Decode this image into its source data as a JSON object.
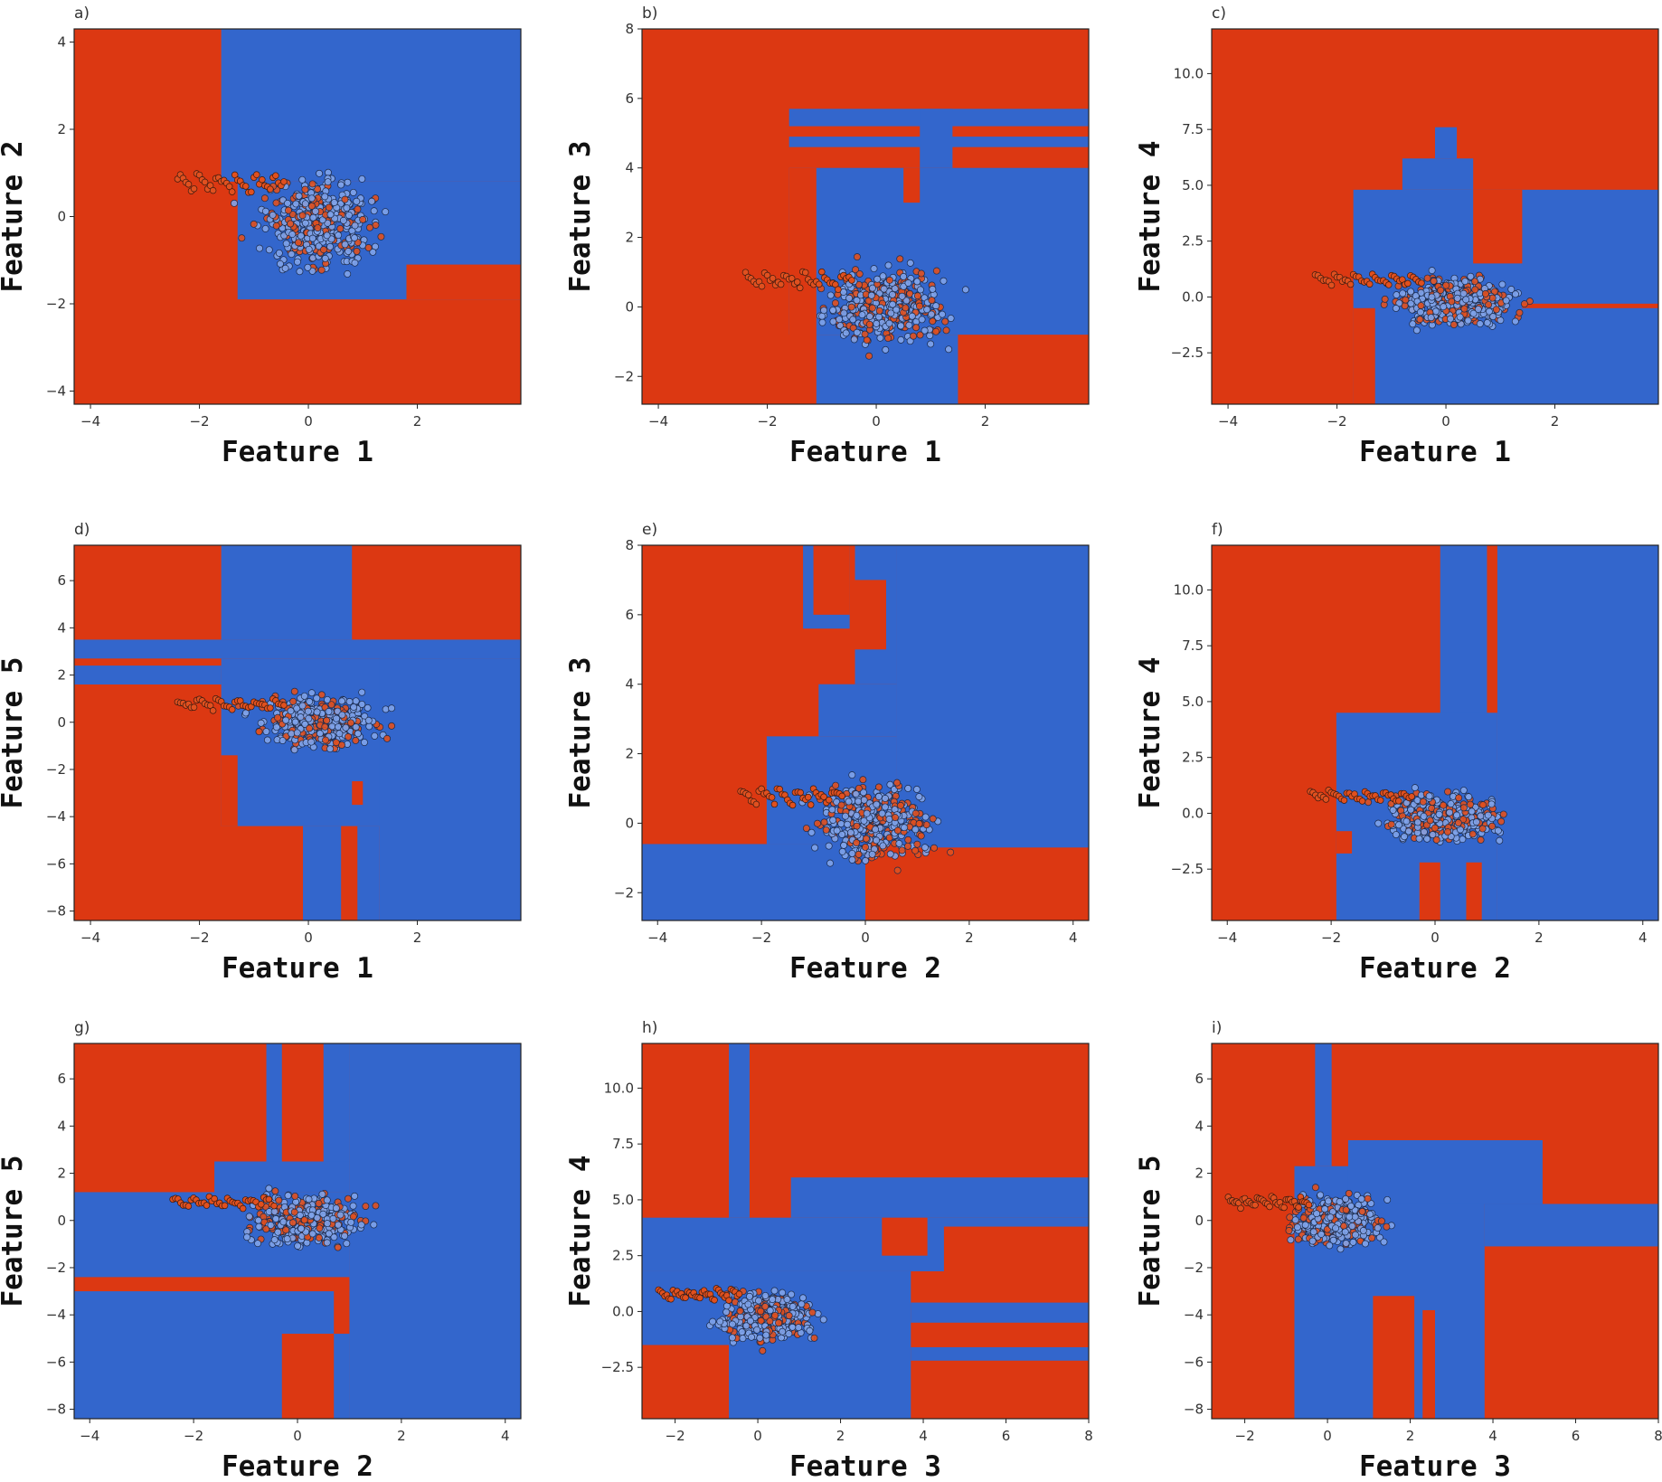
{
  "colors": {
    "class_a": "#dc3812",
    "class_b": "#3366cc",
    "class_a_point": "#e0501f",
    "class_b_point": "#7fa3ea"
  },
  "chart_data": [
    {
      "type": "scatter",
      "letter": "a)",
      "xlabel": "Feature 1",
      "ylabel": "Feature 2",
      "xlim": [
        -4.3,
        3.9
      ],
      "ylim": [
        -4.3,
        4.3
      ],
      "xticks": [
        "-4",
        "-2",
        "0",
        "2"
      ],
      "yticks": [
        "-4",
        "-2",
        "0",
        "2",
        "4"
      ],
      "background": "class_a",
      "regions": [
        {
          "x": [
            -1.6,
            3.9
          ],
          "y": [
            0.8,
            4.3
          ],
          "c": "class_b"
        },
        {
          "x": [
            -1.3,
            3.9
          ],
          "y": [
            -1.9,
            0.8
          ],
          "c": "class_b"
        },
        {
          "x": [
            1.8,
            3.9
          ],
          "y": [
            -1.9,
            -1.1
          ],
          "c": "class_a"
        }
      ]
    },
    {
      "type": "scatter",
      "letter": "b)",
      "xlabel": "Feature 1",
      "ylabel": "Feature 3",
      "xlim": [
        -4.3,
        3.9
      ],
      "ylim": [
        -2.8,
        8.0
      ],
      "xticks": [
        "-4",
        "-2",
        "0",
        "2"
      ],
      "yticks": [
        "-2",
        "0",
        "2",
        "4",
        "6",
        "8"
      ],
      "background": "class_a",
      "regions": [
        {
          "x": [
            -1.6,
            3.9
          ],
          "y": [
            -0.8,
            4.0
          ],
          "c": "class_b"
        },
        {
          "x": [
            -1.2,
            1.5
          ],
          "y": [
            -2.8,
            -0.8
          ],
          "c": "class_b"
        },
        {
          "x": [
            -1.6,
            3.9
          ],
          "y": [
            5.2,
            5.7
          ],
          "c": "class_b"
        },
        {
          "x": [
            -1.6,
            3.9
          ],
          "y": [
            4.6,
            4.9
          ],
          "c": "class_b"
        },
        {
          "x": [
            0.8,
            1.4
          ],
          "y": [
            4.0,
            5.7
          ],
          "c": "class_b"
        },
        {
          "x": [
            -1.6,
            -1.1
          ],
          "y": [
            -2.8,
            4.0
          ],
          "c": "class_a"
        },
        {
          "x": [
            0.5,
            0.8
          ],
          "y": [
            3.0,
            4.0
          ],
          "c": "class_a"
        }
      ]
    },
    {
      "type": "scatter",
      "letter": "c)",
      "xlabel": "Feature 1",
      "ylabel": "Feature 4",
      "xlim": [
        -4.3,
        3.9
      ],
      "ylim": [
        -4.8,
        12.0
      ],
      "xticks": [
        "-4",
        "-2",
        "0",
        "2"
      ],
      "yticks": [
        "-2.5",
        "0.0",
        "2.5",
        "5.0",
        "7.5",
        "10.0"
      ],
      "yticks_values": [
        -2.5,
        0.0,
        2.5,
        5.0,
        7.5,
        10.0
      ],
      "background": "class_a",
      "regions": [
        {
          "x": [
            -1.7,
            3.9
          ],
          "y": [
            -4.8,
            4.8
          ],
          "c": "class_b"
        },
        {
          "x": [
            -0.8,
            0.5
          ],
          "y": [
            4.8,
            6.2
          ],
          "c": "class_b"
        },
        {
          "x": [
            -0.2,
            0.2
          ],
          "y": [
            6.2,
            7.6
          ],
          "c": "class_b"
        },
        {
          "x": [
            0.5,
            1.4
          ],
          "y": [
            1.5,
            4.8
          ],
          "c": "class_a"
        },
        {
          "x": [
            1.4,
            3.9
          ],
          "y": [
            -0.5,
            -0.3
          ],
          "c": "class_a"
        },
        {
          "x": [
            -1.7,
            -1.3
          ],
          "y": [
            -4.8,
            -0.5
          ],
          "c": "class_a"
        }
      ]
    },
    {
      "type": "scatter",
      "letter": "d)",
      "xlabel": "Feature 1",
      "ylabel": "Feature 5",
      "xlim": [
        -4.3,
        3.9
      ],
      "ylim": [
        -8.4,
        7.5
      ],
      "xticks": [
        "-4",
        "-2",
        "0",
        "2"
      ],
      "yticks": [
        "-8",
        "-6",
        "-4",
        "-2",
        "0",
        "2",
        "4",
        "6"
      ],
      "background": "class_a",
      "regions": [
        {
          "x": [
            -1.6,
            0.8
          ],
          "y": [
            3.5,
            7.5
          ],
          "c": "class_b"
        },
        {
          "x": [
            -4.3,
            3.9
          ],
          "y": [
            2.7,
            3.5
          ],
          "c": "class_b"
        },
        {
          "x": [
            -4.3,
            -1.6
          ],
          "y": [
            1.6,
            2.4
          ],
          "c": "class_b"
        },
        {
          "x": [
            -1.6,
            3.9
          ],
          "y": [
            -4.4,
            2.7
          ],
          "c": "class_b"
        },
        {
          "x": [
            1.3,
            3.9
          ],
          "y": [
            -8.4,
            2.7
          ],
          "c": "class_b"
        },
        {
          "x": [
            -0.1,
            0.6
          ],
          "y": [
            -8.4,
            -4.4
          ],
          "c": "class_b"
        },
        {
          "x": [
            0.9,
            1.3
          ],
          "y": [
            -8.4,
            -4.4
          ],
          "c": "class_b"
        },
        {
          "x": [
            -1.6,
            -1.3
          ],
          "y": [
            -4.4,
            -1.4
          ],
          "c": "class_a"
        },
        {
          "x": [
            0.8,
            1.0
          ],
          "y": [
            -3.5,
            -2.5
          ],
          "c": "class_a"
        }
      ]
    },
    {
      "type": "scatter",
      "letter": "e)",
      "xlabel": "Feature 2",
      "ylabel": "Feature 3",
      "xlim": [
        -4.3,
        4.3
      ],
      "ylim": [
        -2.8,
        8.0
      ],
      "xticks": [
        "-4",
        "-2",
        "0",
        "2",
        "4"
      ],
      "yticks": [
        "-2",
        "0",
        "2",
        "4",
        "6",
        "8"
      ],
      "background": "class_a",
      "regions": [
        {
          "x": [
            0.6,
            4.3
          ],
          "y": [
            -0.7,
            8.0
          ],
          "c": "class_b"
        },
        {
          "x": [
            -4.3,
            0.0
          ],
          "y": [
            -2.8,
            -0.6
          ],
          "c": "class_b"
        },
        {
          "x": [
            -1.9,
            0.6
          ],
          "y": [
            -0.6,
            2.5
          ],
          "c": "class_b"
        },
        {
          "x": [
            -0.9,
            0.6
          ],
          "y": [
            2.5,
            4.0
          ],
          "c": "class_b"
        },
        {
          "x": [
            -1.2,
            -0.3
          ],
          "y": [
            5.6,
            8.0
          ],
          "c": "class_b"
        },
        {
          "x": [
            -0.2,
            0.6
          ],
          "y": [
            4.0,
            8.0
          ],
          "c": "class_b"
        },
        {
          "x": [
            -0.3,
            0.4
          ],
          "y": [
            5.0,
            7.0
          ],
          "c": "class_a"
        },
        {
          "x": [
            -1.0,
            -0.3
          ],
          "y": [
            6.0,
            8.0
          ],
          "c": "class_a"
        }
      ]
    },
    {
      "type": "scatter",
      "letter": "f)",
      "xlabel": "Feature 2",
      "ylabel": "Feature 4",
      "xlim": [
        -4.3,
        4.3
      ],
      "ylim": [
        -4.8,
        12.0
      ],
      "xticks": [
        "-4",
        "-2",
        "0",
        "2",
        "4"
      ],
      "yticks": [
        "-2.5",
        "0.0",
        "2.5",
        "5.0",
        "7.5",
        "10.0"
      ],
      "yticks_values": [
        -2.5,
        0.0,
        2.5,
        5.0,
        7.5,
        10.0
      ],
      "background": "class_a",
      "regions": [
        {
          "x": [
            1.2,
            4.3
          ],
          "y": [
            -4.8,
            12.0
          ],
          "c": "class_b"
        },
        {
          "x": [
            0.1,
            1.0
          ],
          "y": [
            -4.8,
            12.0
          ],
          "c": "class_b"
        },
        {
          "x": [
            -1.9,
            1.2
          ],
          "y": [
            -4.8,
            4.5
          ],
          "c": "class_b"
        },
        {
          "x": [
            -0.3,
            0.1
          ],
          "y": [
            -4.8,
            -2.2
          ],
          "c": "class_a"
        },
        {
          "x": [
            0.6,
            0.9
          ],
          "y": [
            -4.8,
            -2.2
          ],
          "c": "class_a"
        },
        {
          "x": [
            -1.9,
            -1.6
          ],
          "y": [
            -1.8,
            -0.8
          ],
          "c": "class_a"
        }
      ]
    },
    {
      "type": "scatter",
      "letter": "g)",
      "xlabel": "Feature 2",
      "ylabel": "Feature 5",
      "xlim": [
        -4.3,
        4.3
      ],
      "ylim": [
        -8.4,
        7.5
      ],
      "xticks": [
        "-4",
        "-2",
        "0",
        "2",
        "4"
      ],
      "yticks": [
        "-8",
        "-6",
        "-4",
        "-2",
        "0",
        "2",
        "4",
        "6"
      ],
      "background": "class_a",
      "regions": [
        {
          "x": [
            1.0,
            4.3
          ],
          "y": [
            -8.4,
            7.5
          ],
          "c": "class_b"
        },
        {
          "x": [
            -4.3,
            1.0
          ],
          "y": [
            -2.4,
            1.2
          ],
          "c": "class_b"
        },
        {
          "x": [
            -4.3,
            1.0
          ],
          "y": [
            -8.4,
            -3.0
          ],
          "c": "class_b"
        },
        {
          "x": [
            -1.6,
            1.0
          ],
          "y": [
            1.2,
            2.5
          ],
          "c": "class_b"
        },
        {
          "x": [
            -0.6,
            -0.3
          ],
          "y": [
            2.5,
            7.5
          ],
          "c": "class_b"
        },
        {
          "x": [
            0.5,
            1.0
          ],
          "y": [
            2.5,
            7.5
          ],
          "c": "class_b"
        },
        {
          "x": [
            -0.3,
            0.7
          ],
          "y": [
            -8.4,
            -4.8
          ],
          "c": "class_a"
        },
        {
          "x": [
            0.7,
            1.0
          ],
          "y": [
            -4.8,
            -2.5
          ],
          "c": "class_a"
        }
      ]
    },
    {
      "type": "scatter",
      "letter": "h)",
      "xlabel": "Feature 3",
      "ylabel": "Feature 4",
      "xlim": [
        -2.8,
        8.0
      ],
      "ylim": [
        -4.8,
        12.0
      ],
      "xticks": [
        "-2",
        "0",
        "2",
        "4",
        "6",
        "8"
      ],
      "yticks": [
        "-2.5",
        "0.0",
        "2.5",
        "5.0",
        "7.5",
        "10.0"
      ],
      "yticks_values": [
        -2.5,
        0.0,
        2.5,
        5.0,
        7.5,
        10.0
      ],
      "background": "class_a",
      "regions": [
        {
          "x": [
            -2.8,
            3.7
          ],
          "y": [
            -4.8,
            1.8
          ],
          "c": "class_b"
        },
        {
          "x": [
            -2.8,
            8.0
          ],
          "y": [
            1.8,
            4.2
          ],
          "c": "class_b"
        },
        {
          "x": [
            0.8,
            8.0
          ],
          "y": [
            4.2,
            6.0
          ],
          "c": "class_b"
        },
        {
          "x": [
            -0.7,
            -0.2
          ],
          "y": [
            4.2,
            12.0
          ],
          "c": "class_b"
        },
        {
          "x": [
            3.7,
            8.0
          ],
          "y": [
            -0.5,
            0.4
          ],
          "c": "class_b"
        },
        {
          "x": [
            3.7,
            8.0
          ],
          "y": [
            -2.2,
            -1.6
          ],
          "c": "class_b"
        },
        {
          "x": [
            -2.8,
            -0.7
          ],
          "y": [
            -4.8,
            -1.5
          ],
          "c": "class_a"
        },
        {
          "x": [
            4.5,
            8.0
          ],
          "y": [
            0.4,
            3.8
          ],
          "c": "class_a"
        },
        {
          "x": [
            3.0,
            4.1
          ],
          "y": [
            2.5,
            4.2
          ],
          "c": "class_a"
        }
      ]
    },
    {
      "type": "scatter",
      "letter": "i)",
      "xlabel": "Feature 3",
      "ylabel": "Feature 5",
      "xlim": [
        -2.8,
        8.0
      ],
      "ylim": [
        -8.4,
        7.5
      ],
      "xticks": [
        "-2",
        "0",
        "2",
        "4",
        "6",
        "8"
      ],
      "yticks": [
        "-8",
        "-6",
        "-4",
        "-2",
        "0",
        "2",
        "4",
        "6"
      ],
      "background": "class_a",
      "regions": [
        {
          "x": [
            -0.8,
            3.8
          ],
          "y": [
            -8.4,
            2.3
          ],
          "c": "class_b"
        },
        {
          "x": [
            0.5,
            5.2
          ],
          "y": [
            0.7,
            3.4
          ],
          "c": "class_b"
        },
        {
          "x": [
            3.8,
            8.0
          ],
          "y": [
            -1.1,
            0.7
          ],
          "c": "class_b"
        },
        {
          "x": [
            -0.3,
            0.1
          ],
          "y": [
            2.3,
            7.5
          ],
          "c": "class_b"
        },
        {
          "x": [
            1.1,
            2.1
          ],
          "y": [
            -8.4,
            -3.2
          ],
          "c": "class_a"
        },
        {
          "x": [
            2.3,
            2.6
          ],
          "y": [
            -8.4,
            -3.8
          ],
          "c": "class_a"
        },
        {
          "x": [
            3.8,
            5.2
          ],
          "y": [
            -8.4,
            -1.1
          ],
          "c": "class_a"
        }
      ]
    }
  ]
}
